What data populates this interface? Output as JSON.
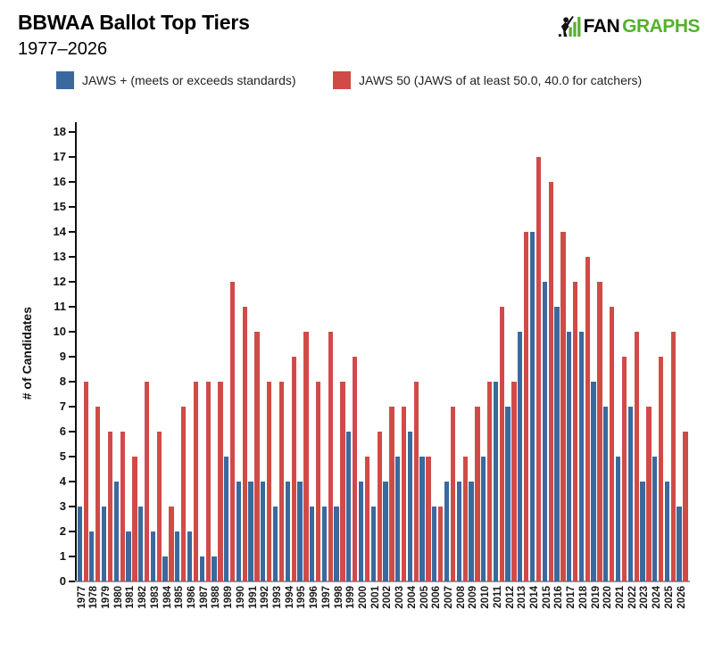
{
  "header": {
    "title": "BBWAA Ballot Top Tiers",
    "subtitle": "1977–2026",
    "logo": {
      "fan": "FAN",
      "graphs": "GRAPHS",
      "fan_color": "#111111",
      "graphs_color": "#55B12E"
    }
  },
  "legend": [
    {
      "label": "JAWS + (meets or exceeds standards)",
      "color": "#3A699E"
    },
    {
      "label": "JAWS 50 (JAWS of at least 50.0, 40.0 for catchers)",
      "color": "#D04B48"
    }
  ],
  "chart_data": {
    "type": "bar",
    "title": "BBWAA Ballot Top Tiers",
    "subtitle": "1977–2026",
    "xlabel": "",
    "ylabel": "# of Candidates",
    "ylim": [
      0,
      18
    ],
    "ytick_step": 1,
    "grid": false,
    "legend_position": "top",
    "categories": [
      "1977",
      "1978",
      "1979",
      "1980",
      "1981",
      "1982",
      "1983",
      "1984",
      "1985",
      "1986",
      "1987",
      "1988",
      "1989",
      "1990",
      "1991",
      "1992",
      "1993",
      "1994",
      "1995",
      "1996",
      "1997",
      "1998",
      "1999",
      "2000",
      "2001",
      "2002",
      "2003",
      "2004",
      "2005",
      "2006",
      "2007",
      "2008",
      "2009",
      "2010",
      "2011",
      "2012",
      "2013",
      "2014",
      "2015",
      "2016",
      "2017",
      "2018",
      "2019",
      "2020",
      "2021",
      "2022",
      "2023",
      "2024",
      "2025",
      "2026"
    ],
    "series": [
      {
        "name": "JAWS + (meets or exceeds standards)",
        "color": "#3A699E",
        "values": [
          3,
          2,
          3,
          4,
          2,
          3,
          2,
          1,
          2,
          2,
          1,
          1,
          5,
          4,
          4,
          4,
          3,
          4,
          4,
          3,
          3,
          3,
          6,
          4,
          3,
          4,
          5,
          6,
          5,
          3,
          4,
          4,
          4,
          5,
          8,
          7,
          10,
          14,
          12,
          11,
          10,
          10,
          8,
          7,
          5,
          7,
          4,
          5,
          4,
          3
        ]
      },
      {
        "name": "JAWS 50 (JAWS of at least 50.0, 40.0 for catchers)",
        "color": "#D04B48",
        "values": [
          8,
          7,
          6,
          6,
          5,
          8,
          6,
          3,
          7,
          8,
          8,
          8,
          12,
          11,
          10,
          8,
          8,
          9,
          10,
          8,
          10,
          8,
          9,
          5,
          6,
          7,
          7,
          8,
          5,
          3,
          7,
          5,
          7,
          8,
          11,
          8,
          14,
          17,
          16,
          14,
          12,
          13,
          12,
          11,
          9,
          10,
          7,
          9,
          10,
          6
        ]
      }
    ]
  }
}
